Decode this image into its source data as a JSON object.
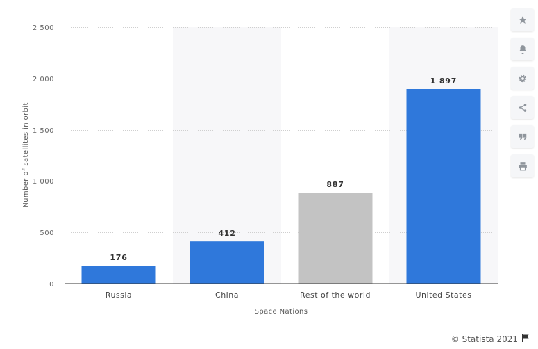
{
  "chart_data": {
    "type": "bar",
    "categories": [
      "Russia",
      "China",
      "Rest of the world",
      "United States"
    ],
    "values": [
      176,
      412,
      887,
      1897
    ],
    "value_labels": [
      "176",
      "412",
      "887",
      "1 897"
    ],
    "bar_colors": [
      "#2f78db",
      "#2f78db",
      "#c3c3c3",
      "#2f78db"
    ],
    "xlabel": "Space Nations",
    "ylabel": "Number of satellites in orbit",
    "ylim": [
      0,
      2500
    ],
    "yticks": [
      0,
      500,
      1000,
      1500,
      2000,
      2500
    ],
    "ytick_labels": [
      "0",
      "500",
      "1 000",
      "1 500",
      "2 000",
      "2 500"
    ],
    "grid": true,
    "alternate_column_shading": true
  },
  "toolbar": {
    "icons": [
      "star-icon",
      "bell-icon",
      "gear-icon",
      "share-icon",
      "quote-icon",
      "print-icon"
    ]
  },
  "credits": {
    "text": "© Statista 2021",
    "icon": "flag-icon"
  }
}
